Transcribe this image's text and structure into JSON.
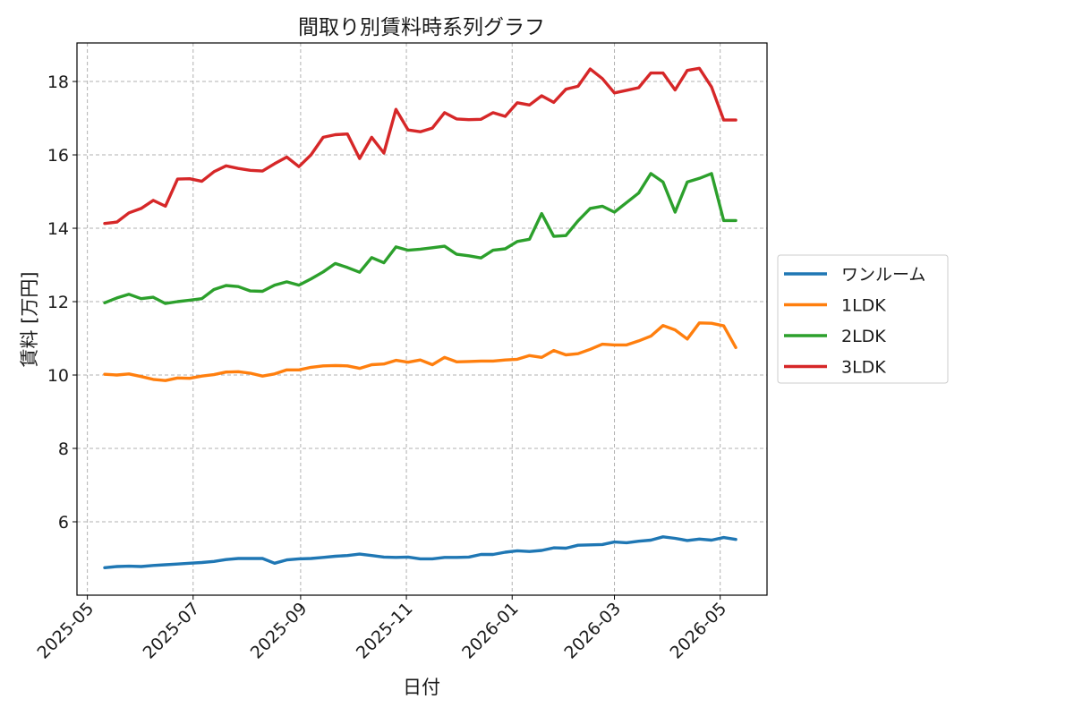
{
  "chart_data": {
    "type": "line",
    "title": "間取り別賃料時系列グラフ",
    "xlabel": "日付",
    "ylabel": "賃料 [万円]",
    "x_tick_labels": [
      "2025-05",
      "2025-07",
      "2025-09",
      "2025-11",
      "2026-01",
      "2026-03",
      "2026-05"
    ],
    "x_tick_dates": [
      "2025-05-01",
      "2025-07-01",
      "2025-09-01",
      "2025-11-01",
      "2026-01-01",
      "2026-03-01",
      "2026-05-01"
    ],
    "xlim": [
      "2025-04-25",
      "2026-05-28"
    ],
    "y_ticks": [
      6,
      8,
      10,
      12,
      14,
      16,
      18
    ],
    "y_tick_labels": [
      "6",
      "8",
      "10",
      "12",
      "14",
      "16",
      "18"
    ],
    "ylim": [
      4.0,
      19.05
    ],
    "grid": true,
    "legend_position": "right",
    "x": [
      "2025-05-11",
      "2025-05-18",
      "2025-05-25",
      "2025-06-01",
      "2025-06-08",
      "2025-06-15",
      "2025-06-22",
      "2025-06-29",
      "2025-07-06",
      "2025-07-13",
      "2025-07-20",
      "2025-07-27",
      "2025-08-03",
      "2025-08-10",
      "2025-08-17",
      "2025-08-24",
      "2025-08-31",
      "2025-09-07",
      "2025-09-14",
      "2025-09-21",
      "2025-09-28",
      "2025-10-05",
      "2025-10-12",
      "2025-10-19",
      "2025-10-26",
      "2025-11-02",
      "2025-11-09",
      "2025-11-16",
      "2025-11-23",
      "2025-11-30",
      "2025-12-07",
      "2025-12-14",
      "2025-12-21",
      "2025-12-28",
      "2026-01-04",
      "2026-01-11",
      "2026-01-18",
      "2026-01-25",
      "2026-02-01",
      "2026-02-08",
      "2026-02-15",
      "2026-02-22",
      "2026-03-01",
      "2026-03-08",
      "2026-03-15",
      "2026-03-22",
      "2026-03-29",
      "2026-04-05",
      "2026-04-12",
      "2026-04-19",
      "2026-04-26",
      "2026-05-03",
      "2026-05-10"
    ],
    "series": [
      {
        "name": "ワンルーム",
        "color": "#1f77b4",
        "values": [
          4.75,
          4.78,
          4.79,
          4.78,
          4.81,
          4.83,
          4.85,
          4.87,
          4.89,
          4.92,
          4.97,
          5.0,
          5.0,
          5.0,
          4.87,
          4.96,
          4.99,
          5.0,
          5.03,
          5.06,
          5.08,
          5.12,
          5.08,
          5.04,
          5.03,
          5.04,
          4.99,
          4.99,
          5.03,
          5.03,
          5.04,
          5.11,
          5.11,
          5.17,
          5.21,
          5.19,
          5.22,
          5.29,
          5.28,
          5.36,
          5.37,
          5.38,
          5.45,
          5.43,
          5.47,
          5.5,
          5.59,
          5.55,
          5.49,
          5.53,
          5.5,
          5.57,
          5.52
        ]
      },
      {
        "name": "1LDK",
        "color": "#ff7f0e",
        "values": [
          10.02,
          10.0,
          10.03,
          9.96,
          9.88,
          9.85,
          9.92,
          9.91,
          9.97,
          10.01,
          10.08,
          10.09,
          10.05,
          9.97,
          10.03,
          10.14,
          10.14,
          10.21,
          10.25,
          10.26,
          10.25,
          10.18,
          10.28,
          10.3,
          10.4,
          10.35,
          10.41,
          10.28,
          10.48,
          10.36,
          10.37,
          10.38,
          10.38,
          10.41,
          10.43,
          10.53,
          10.48,
          10.67,
          10.55,
          10.58,
          10.7,
          10.84,
          10.82,
          10.82,
          10.93,
          11.06,
          11.35,
          11.23,
          10.98,
          11.42,
          11.41,
          11.34,
          10.75
        ]
      },
      {
        "name": "2LDK",
        "color": "#2ca02c",
        "values": [
          11.97,
          12.1,
          12.2,
          12.08,
          12.12,
          11.95,
          12.0,
          12.04,
          12.08,
          12.33,
          12.44,
          12.41,
          12.29,
          12.28,
          12.45,
          12.54,
          12.45,
          12.62,
          12.81,
          13.04,
          12.93,
          12.8,
          13.2,
          13.06,
          13.49,
          13.4,
          13.43,
          13.47,
          13.51,
          13.29,
          13.25,
          13.19,
          13.4,
          13.44,
          13.64,
          13.7,
          14.4,
          13.78,
          13.8,
          14.2,
          14.54,
          14.6,
          14.44,
          14.7,
          14.96,
          15.49,
          15.26,
          14.44,
          15.26,
          15.36,
          15.49,
          14.21,
          14.21
        ]
      },
      {
        "name": "3LDK",
        "color": "#d62728",
        "values": [
          14.13,
          14.17,
          14.42,
          14.54,
          14.76,
          14.6,
          15.34,
          15.35,
          15.28,
          15.54,
          15.7,
          15.63,
          15.58,
          15.56,
          15.76,
          15.94,
          15.68,
          16.0,
          16.48,
          16.55,
          16.57,
          15.9,
          16.48,
          16.05,
          17.24,
          16.68,
          16.63,
          16.73,
          17.15,
          16.98,
          16.96,
          16.97,
          17.15,
          17.05,
          17.42,
          17.36,
          17.61,
          17.43,
          17.79,
          17.87,
          18.34,
          18.08,
          17.69,
          17.76,
          17.83,
          18.23,
          18.23,
          17.77,
          18.3,
          18.36,
          17.85,
          16.95,
          16.95
        ]
      }
    ]
  }
}
